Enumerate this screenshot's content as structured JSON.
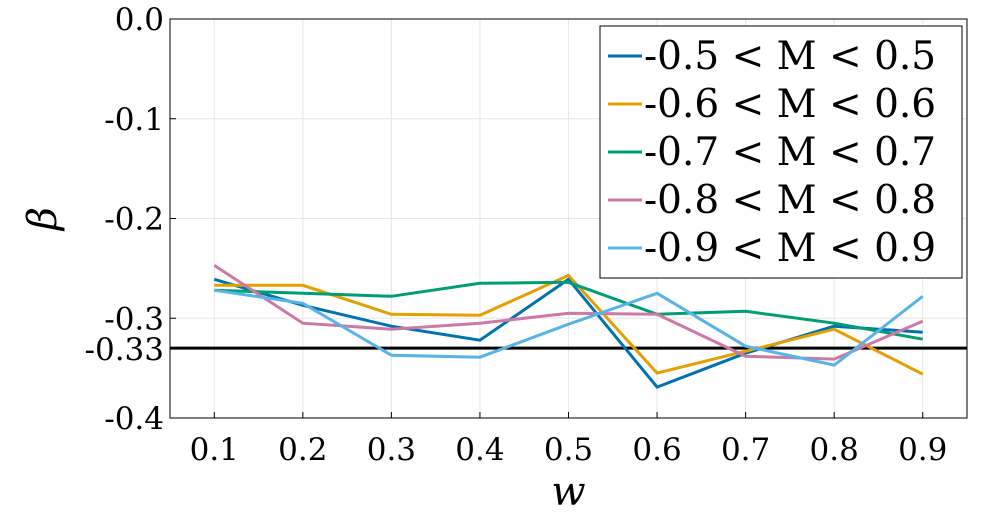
{
  "chart_data": {
    "type": "line",
    "xlabel": "w",
    "ylabel": "β",
    "xlim": [
      0.05,
      0.95
    ],
    "ylim": [
      -0.4,
      0.0
    ],
    "x": [
      0.1,
      0.2,
      0.3,
      0.4,
      0.5,
      0.6,
      0.7,
      0.8,
      0.9
    ],
    "xticks": [
      "0.1",
      "0.2",
      "0.3",
      "0.4",
      "0.5",
      "0.6",
      "0.7",
      "0.8",
      "0.9"
    ],
    "yticks": [
      {
        "value": 0.0,
        "label": "0.0"
      },
      {
        "value": -0.1,
        "label": "-0.1"
      },
      {
        "value": -0.2,
        "label": "-0.2"
      },
      {
        "value": -0.3,
        "label": "-0.3"
      },
      {
        "value": -0.4,
        "label": "-0.4"
      }
    ],
    "reference_line": {
      "value": -0.33,
      "label": "-0.33",
      "color": "#000000"
    },
    "grid": true,
    "legend_position": "top-right",
    "series": [
      {
        "name": "-0.5 < M < 0.5",
        "color": "#0072b2",
        "values": [
          -0.261,
          -0.287,
          -0.308,
          -0.322,
          -0.261,
          -0.369,
          -0.335,
          -0.308,
          -0.314
        ]
      },
      {
        "name": "-0.6 < M < 0.6",
        "color": "#e69f00",
        "values": [
          -0.267,
          -0.267,
          -0.296,
          -0.297,
          -0.257,
          -0.355,
          -0.333,
          -0.311,
          -0.356
        ]
      },
      {
        "name": "-0.7 < M < 0.7",
        "color": "#009e73",
        "values": [
          -0.272,
          -0.275,
          -0.278,
          -0.265,
          -0.264,
          -0.296,
          -0.293,
          -0.305,
          -0.321
        ]
      },
      {
        "name": "-0.8 < M < 0.8",
        "color": "#cc79a7",
        "values": [
          -0.247,
          -0.305,
          -0.311,
          -0.305,
          -0.295,
          -0.296,
          -0.338,
          -0.341,
          -0.303
        ]
      },
      {
        "name": "-0.9 < M < 0.9",
        "color": "#56b4e9",
        "values": [
          -0.272,
          -0.285,
          -0.337,
          -0.339,
          -0.306,
          -0.275,
          -0.328,
          -0.347,
          -0.278
        ]
      }
    ]
  }
}
